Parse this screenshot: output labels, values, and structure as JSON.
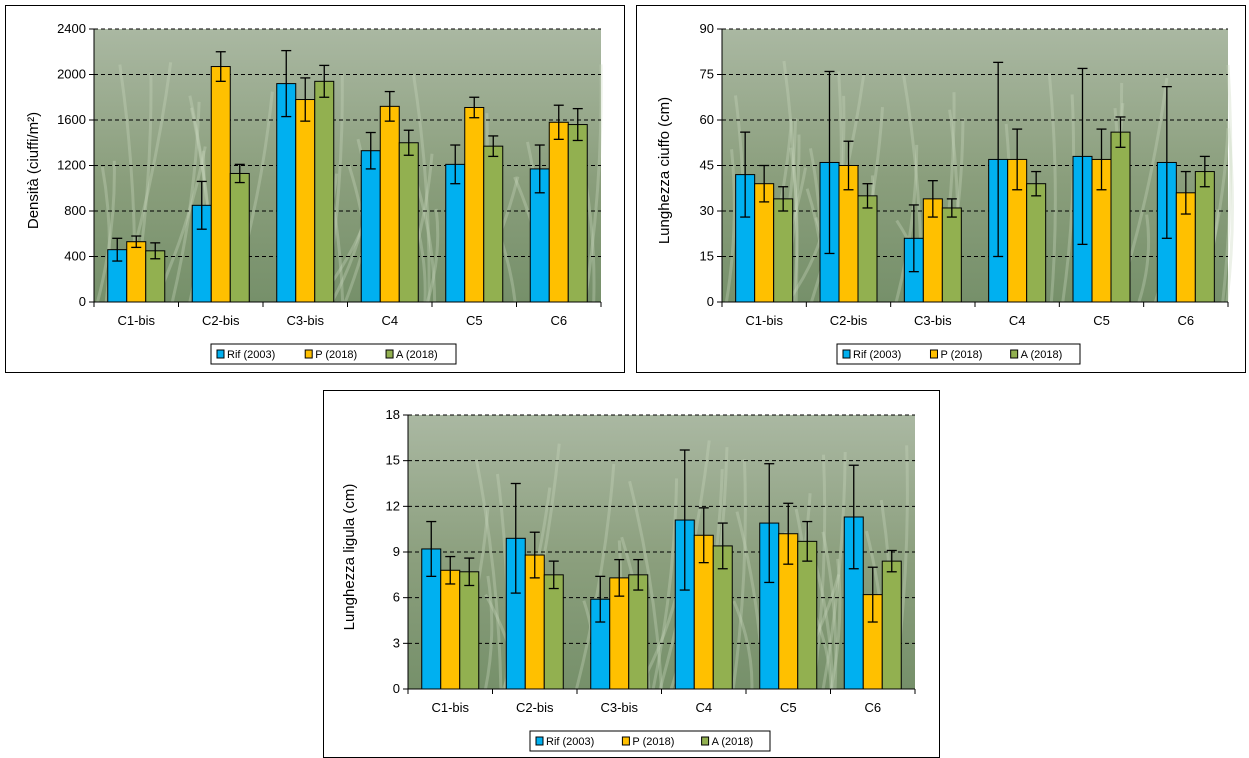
{
  "chart_data": [
    {
      "type": "bar",
      "ylabel": "Densità (ciuffi/m²)",
      "categories": [
        "C1-bis",
        "C2-bis",
        "C3-bis",
        "C4",
        "C5",
        "C6"
      ],
      "ylim": [
        0,
        2400
      ],
      "yticks": [
        "0",
        "400",
        "800",
        "1200",
        "1600",
        "2000",
        "2400"
      ],
      "grid": "horizontal dashed",
      "legend": "bottom",
      "series": [
        {
          "name": "Rif (2003)",
          "color": "#00b0f0",
          "values": [
            460,
            850,
            1920,
            1330,
            1210,
            1170
          ],
          "err": [
            100,
            210,
            290,
            160,
            170,
            210
          ]
        },
        {
          "name": "P (2018)",
          "color": "#ffc000",
          "values": [
            530,
            2070,
            1780,
            1720,
            1710,
            1580
          ],
          "err": [
            50,
            130,
            190,
            130,
            90,
            150
          ]
        },
        {
          "name": "A (2018)",
          "color": "#92b050",
          "values": [
            450,
            1130,
            1940,
            1400,
            1370,
            1560
          ],
          "err": [
            70,
            80,
            140,
            110,
            90,
            140
          ]
        }
      ]
    },
    {
      "type": "bar",
      "ylabel": "Lunghezza ciuffo (cm)",
      "categories": [
        "C1-bis",
        "C2-bis",
        "C3-bis",
        "C4",
        "C5",
        "C6"
      ],
      "ylim": [
        0,
        90
      ],
      "yticks": [
        "0",
        "15",
        "30",
        "45",
        "60",
        "75",
        "90"
      ],
      "grid": "horizontal dashed",
      "legend": "bottom",
      "series": [
        {
          "name": "Rif (2003)",
          "color": "#00b0f0",
          "values": [
            42,
            46,
            21,
            47,
            48,
            46
          ],
          "err": [
            14,
            30,
            11,
            32,
            29,
            25
          ]
        },
        {
          "name": "P (2018)",
          "color": "#ffc000",
          "values": [
            39,
            45,
            34,
            47,
            47,
            36
          ],
          "err": [
            6,
            8,
            6,
            10,
            10,
            7
          ]
        },
        {
          "name": "A (2018)",
          "color": "#92b050",
          "values": [
            34,
            35,
            31,
            39,
            56,
            43
          ],
          "err": [
            4,
            4,
            3,
            4,
            5,
            5
          ]
        }
      ]
    },
    {
      "type": "bar",
      "ylabel": "Lunghezza ligula (cm)",
      "categories": [
        "C1-bis",
        "C2-bis",
        "C3-bis",
        "C4",
        "C5",
        "C6"
      ],
      "ylim": [
        0,
        18
      ],
      "yticks": [
        "0",
        "3",
        "6",
        "9",
        "12",
        "15",
        "18"
      ],
      "grid": "horizontal dashed",
      "legend": "bottom",
      "series": [
        {
          "name": "Rif (2003)",
          "color": "#00b0f0",
          "values": [
            9.2,
            9.9,
            5.9,
            11.1,
            10.9,
            11.3
          ],
          "err": [
            1.8,
            3.6,
            1.5,
            4.6,
            3.9,
            3.4
          ]
        },
        {
          "name": "P (2018)",
          "color": "#ffc000",
          "values": [
            7.8,
            8.8,
            7.3,
            10.1,
            10.2,
            6.2
          ],
          "err": [
            0.9,
            1.5,
            1.2,
            1.8,
            2.0,
            1.8
          ]
        },
        {
          "name": "A (2018)",
          "color": "#92b050",
          "values": [
            7.7,
            7.5,
            7.5,
            9.4,
            9.7,
            8.4
          ],
          "err": [
            0.9,
            0.9,
            1.0,
            1.5,
            1.3,
            0.7
          ]
        }
      ]
    }
  ]
}
